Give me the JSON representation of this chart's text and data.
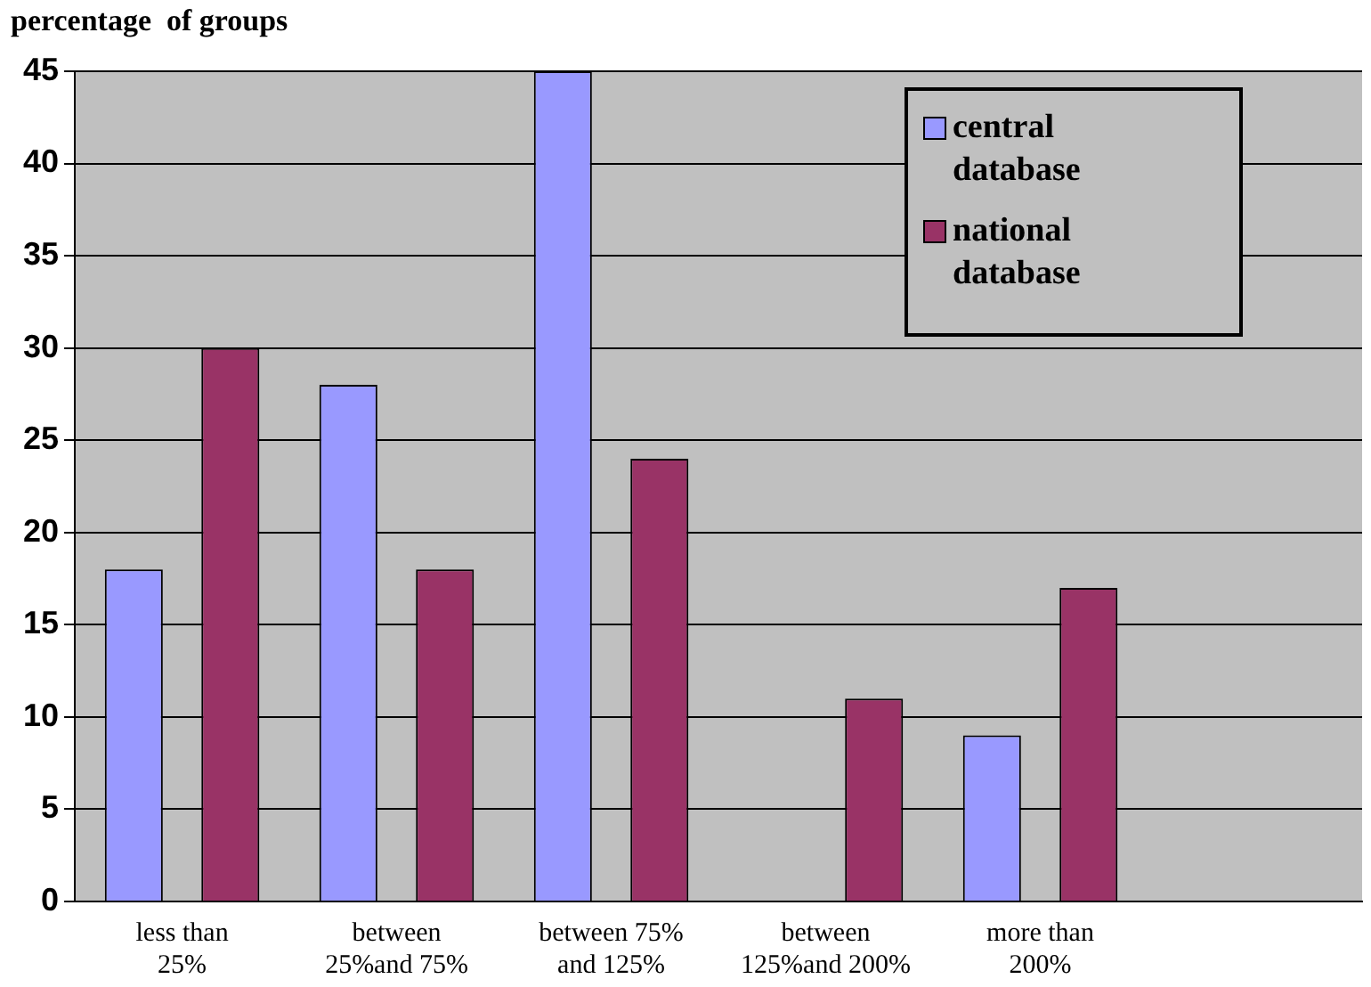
{
  "chart_data": {
    "type": "bar",
    "ylabel": "percentage  of groups",
    "categories": [
      "less than 25%",
      "between 25%and 75%",
      "between 75% and 125%",
      "between 125%and 200%",
      "more than 200%",
      null
    ],
    "series": [
      {
        "name": "central database",
        "color": "#9999ff",
        "values": [
          18,
          28,
          45,
          0,
          9,
          null
        ]
      },
      {
        "name": "national database",
        "color": "#993366",
        "values": [
          30,
          18,
          24,
          11,
          17,
          null
        ]
      }
    ],
    "ylim": [
      0,
      45
    ],
    "yticks": [
      0,
      5,
      10,
      15,
      20,
      25,
      30,
      35,
      40,
      45
    ],
    "grid": "y",
    "legend": "top right"
  }
}
